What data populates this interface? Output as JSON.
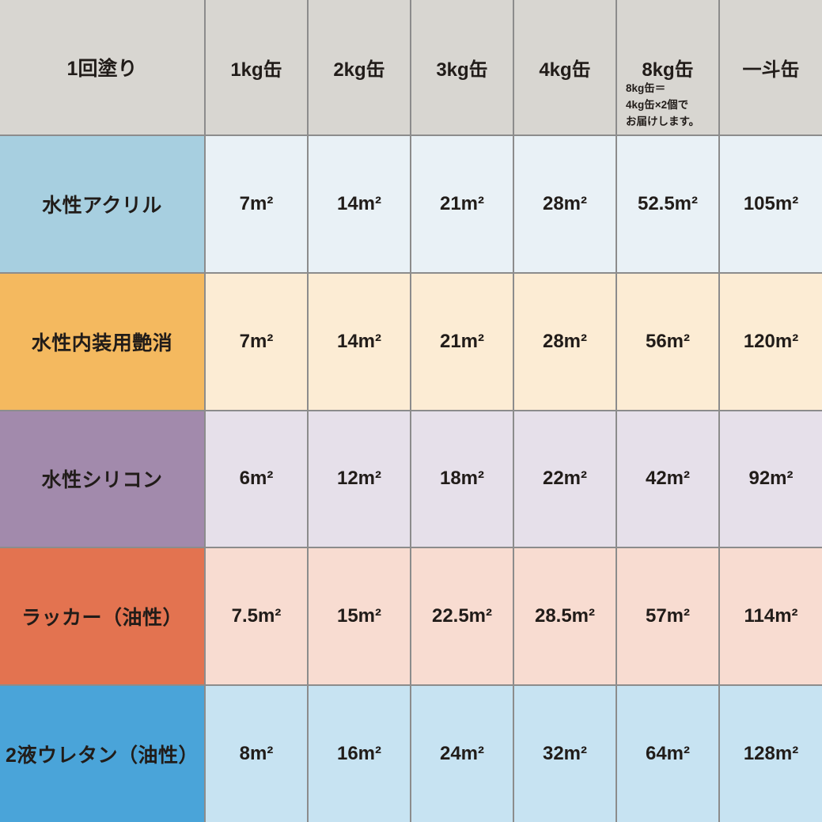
{
  "grid_line_color": "#8c8c8c",
  "table": {
    "header": {
      "bg": "#d8d6d1",
      "corner_label": "1回塗り",
      "columns": [
        "1kg缶",
        "2kg缶",
        "3kg缶",
        "4kg缶",
        "8kg缶",
        "一斗缶"
      ],
      "note_lines": [
        "8kg缶＝",
        "4kg缶×2個で",
        "お届けします。"
      ]
    },
    "rows": [
      {
        "label": "水性アクリル",
        "label_bg": "#a7cfe0",
        "cell_bg": "#e9f1f6",
        "values": [
          "7m²",
          "14m²",
          "21m²",
          "28m²",
          "52.5m²",
          "105m²"
        ]
      },
      {
        "label": "水性内装用艶消",
        "label_bg": "#f4b95f",
        "cell_bg": "#fcecd4",
        "values": [
          "7m²",
          "14m²",
          "21m²",
          "28m²",
          "56m²",
          "120m²"
        ]
      },
      {
        "label": "水性シリコン",
        "label_bg": "#a28aac",
        "cell_bg": "#e6e0ea",
        "values": [
          "6m²",
          "12m²",
          "18m²",
          "22m²",
          "42m²",
          "92m²"
        ]
      },
      {
        "label": "ラッカー（油性）",
        "label_bg": "#e37350",
        "cell_bg": "#f8dcd1",
        "values": [
          "7.5m²",
          "15m²",
          "22.5m²",
          "28.5m²",
          "57m²",
          "114m²"
        ]
      },
      {
        "label": "2液ウレタン（油性）",
        "label_bg": "#4aa4d9",
        "cell_bg": "#c7e3f2",
        "values": [
          "8m²",
          "16m²",
          "24m²",
          "32m²",
          "64m²",
          "128m²"
        ]
      }
    ]
  },
  "chart_data": {
    "type": "table",
    "corner_label": "1回塗り",
    "columns": [
      "1kg缶",
      "2kg缶",
      "3kg缶",
      "4kg缶",
      "8kg缶",
      "一斗缶"
    ],
    "unit": "m²",
    "note": "8kg缶＝4kg缶×2個でお届けします。",
    "rows": [
      {
        "label": "水性アクリル",
        "values_m2": [
          7,
          14,
          21,
          28,
          52.5,
          105
        ]
      },
      {
        "label": "水性内装用艶消",
        "values_m2": [
          7,
          14,
          21,
          28,
          56,
          120
        ]
      },
      {
        "label": "水性シリコン",
        "values_m2": [
          6,
          12,
          18,
          22,
          42,
          92
        ]
      },
      {
        "label": "ラッカー（油性）",
        "values_m2": [
          7.5,
          15,
          22.5,
          28.5,
          57,
          114
        ]
      },
      {
        "label": "2液ウレタン（油性）",
        "values_m2": [
          8,
          16,
          24,
          32,
          64,
          128
        ]
      }
    ]
  }
}
